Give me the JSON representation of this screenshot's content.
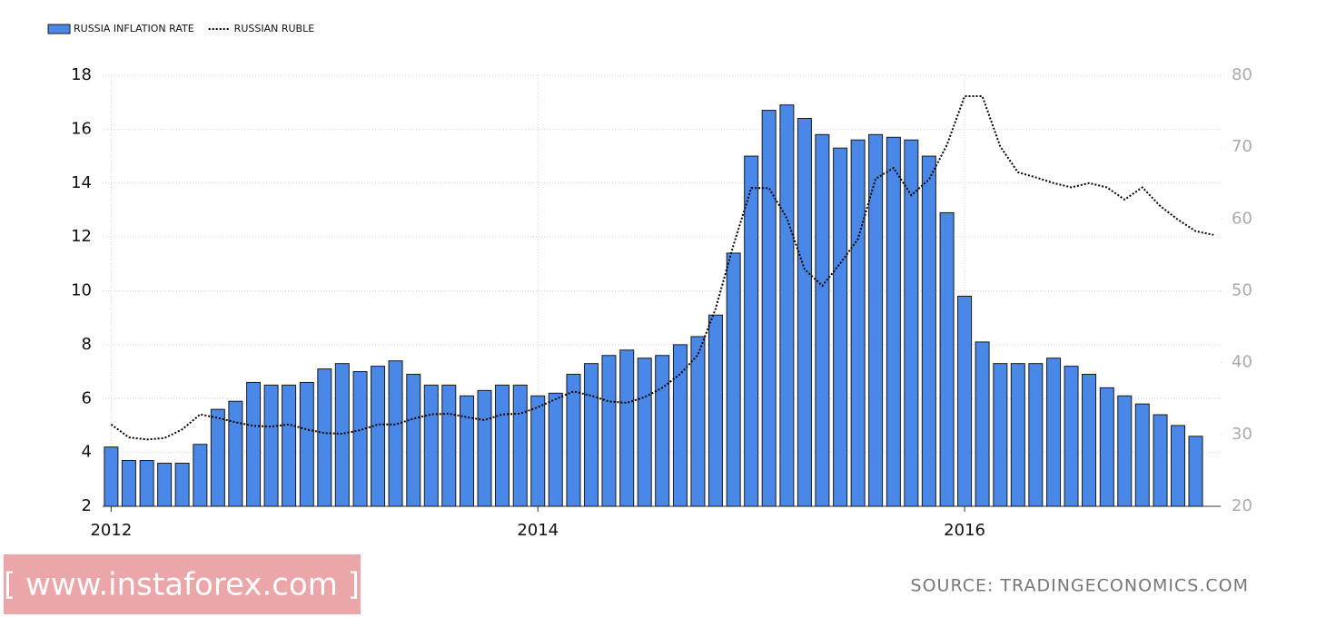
{
  "chart_data": {
    "type": "bar-line",
    "x": [
      2012,
      2012.083,
      2012.167,
      2012.25,
      2012.333,
      2012.417,
      2012.5,
      2012.583,
      2012.667,
      2012.75,
      2012.833,
      2012.917,
      2013,
      2013.083,
      2013.167,
      2013.25,
      2013.333,
      2013.417,
      2013.5,
      2013.583,
      2013.667,
      2013.75,
      2013.833,
      2013.917,
      2014,
      2014.083,
      2014.167,
      2014.25,
      2014.333,
      2014.417,
      2014.5,
      2014.583,
      2014.667,
      2014.75,
      2014.833,
      2014.917,
      2015,
      2015.083,
      2015.167,
      2015.25,
      2015.333,
      2015.417,
      2015.5,
      2015.583,
      2015.667,
      2015.75,
      2015.833,
      2015.917,
      2016,
      2016.083,
      2016.167,
      2016.25,
      2016.333,
      2016.417,
      2016.5,
      2016.583,
      2016.667,
      2016.75,
      2016.833,
      2016.917,
      2017,
      2017.083,
      2017.167
    ],
    "series": [
      {
        "name": "RUSSIA INFLATION RATE",
        "kind": "bar",
        "color": "#4a88e8",
        "values": [
          4.2,
          3.7,
          3.7,
          3.6,
          3.6,
          4.3,
          5.6,
          5.9,
          6.6,
          6.5,
          6.5,
          6.6,
          7.1,
          7.3,
          7.0,
          7.2,
          7.4,
          6.9,
          6.5,
          6.5,
          6.1,
          6.3,
          6.5,
          6.5,
          6.1,
          6.2,
          6.9,
          7.3,
          7.6,
          7.8,
          7.5,
          7.6,
          8.0,
          8.3,
          9.1,
          11.4,
          15.0,
          16.7,
          16.9,
          16.4,
          15.8,
          15.3,
          15.6,
          15.8,
          15.7,
          15.6,
          15.0,
          12.9,
          9.8,
          8.1,
          7.3,
          7.3,
          7.3,
          7.5,
          7.2,
          6.9,
          6.4,
          6.1,
          5.8,
          5.4,
          5.0,
          4.6,
          null
        ]
      },
      {
        "name": "RUSSIAN RUBLE",
        "kind": "line",
        "axis": "y2",
        "color": "#000000",
        "values": [
          31.4,
          29.6,
          29.3,
          29.5,
          30.7,
          32.8,
          32.3,
          31.7,
          31.2,
          31.1,
          31.4,
          30.7,
          30.2,
          30.1,
          30.6,
          31.4,
          31.4,
          32.2,
          32.8,
          32.9,
          32.4,
          32.0,
          32.8,
          32.9,
          33.8,
          34.9,
          36.0,
          35.4,
          34.6,
          34.4,
          35.2,
          36.5,
          38.4,
          41.1,
          47.5,
          56.4,
          64.3,
          64.3,
          60.1,
          53.0,
          50.7,
          53.8,
          57.2,
          65.6,
          67.1,
          63.3,
          65.5,
          70.3,
          77.1,
          77.1,
          70.1,
          66.5,
          65.8,
          65.0,
          64.4,
          65.0,
          64.4,
          62.7,
          64.4,
          61.8,
          59.9,
          58.3,
          57.8
        ]
      }
    ],
    "xlim": [
      2011.96,
      2017.2
    ],
    "xticks": [
      2012,
      2014,
      2016
    ],
    "ylim": [
      2,
      18
    ],
    "yticks": [
      2,
      4,
      6,
      8,
      10,
      12,
      14,
      16,
      18
    ],
    "y2lim": [
      20,
      80
    ],
    "y2ticks": [
      20,
      30,
      40,
      50,
      60,
      70,
      80
    ],
    "grid": true,
    "legend": "top-left",
    "watermark": "[ www.instaforex.com ]",
    "source": "SOURCE: TRADINGECONOMICS.COM"
  }
}
